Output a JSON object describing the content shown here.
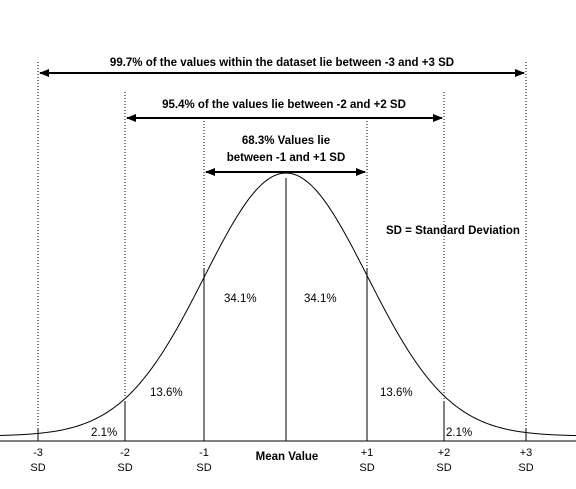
{
  "annotations": {
    "range_3sd": "99.7% of the values within the dataset lie between -3 and +3 SD",
    "range_2sd": "95.4% of the values lie between -2 and +2 SD",
    "range_1sd_line1": "68.3% Values lie",
    "range_1sd_line2": "between -1 and +1 SD",
    "legend_note": "SD = Standard Deviation"
  },
  "percentages": {
    "minus3_to_minus2": "2.1%",
    "minus2_to_minus1": "13.6%",
    "minus1_to_mean": "34.1%",
    "mean_to_plus1": "34.1%",
    "plus1_to_plus2": "13.6%",
    "plus2_to_plus3": "2.1%"
  },
  "axis": {
    "ticks": [
      {
        "top": "-3",
        "bottom": "SD"
      },
      {
        "top": "-2",
        "bottom": "SD"
      },
      {
        "top": "-1",
        "bottom": "SD"
      },
      {
        "top": "+1",
        "bottom": "SD"
      },
      {
        "top": "+2",
        "bottom": "SD"
      },
      {
        "top": "+3",
        "bottom": "SD"
      }
    ],
    "center_label": "Mean Value"
  }
}
